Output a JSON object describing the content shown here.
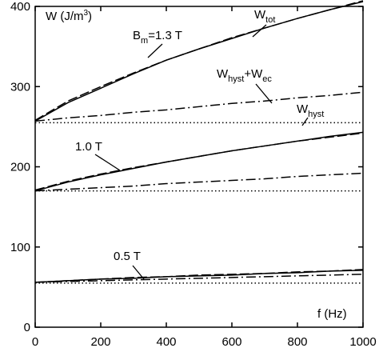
{
  "chart_data": {
    "type": "line",
    "x": [
      0,
      100,
      200,
      300,
      400,
      500,
      600,
      700,
      800,
      900,
      1000
    ],
    "xlim": [
      0,
      1000
    ],
    "xticks": [
      0,
      200,
      400,
      600,
      800,
      1000
    ],
    "ylim": [
      0,
      400
    ],
    "yticks": [
      0,
      100,
      200,
      300,
      400
    ],
    "series": [
      {
        "color": "#000000",
        "style": "solid",
        "values": [
          257,
          280,
          298,
          316,
          333,
          347,
          360,
          373,
          385,
          396,
          406
        ]
      },
      {
        "color": "#000000",
        "style": "dashed",
        "values": [
          258,
          282,
          300,
          317,
          333,
          347,
          361,
          373,
          385,
          396,
          407
        ]
      },
      {
        "color": "#000000",
        "style": "dashdot",
        "values": [
          257,
          261,
          264,
          268,
          271,
          275,
          279,
          282,
          286,
          289,
          293
        ]
      },
      {
        "color": "#000000",
        "style": "dotted",
        "values": [
          255,
          255,
          255,
          255,
          255,
          255,
          255,
          255,
          255,
          255,
          255
        ]
      },
      {
        "color": "#000000",
        "style": "solid",
        "values": [
          170,
          181,
          190,
          198,
          206,
          213,
          220,
          226,
          232,
          238,
          243
        ]
      },
      {
        "color": "#000000",
        "style": "dashed",
        "values": [
          171,
          182,
          191,
          199,
          206,
          213,
          220,
          226,
          232,
          237,
          242
        ]
      },
      {
        "color": "#000000",
        "style": "dashdot",
        "values": [
          170,
          172,
          174,
          176,
          179,
          181,
          183,
          185,
          188,
          190,
          192
        ]
      },
      {
        "color": "#000000",
        "style": "dotted",
        "values": [
          170,
          170,
          170,
          170,
          170,
          170,
          170,
          170,
          170,
          170,
          170
        ]
      },
      {
        "color": "#000000",
        "style": "solid",
        "values": [
          56,
          58,
          60,
          61,
          63,
          64,
          65,
          67,
          68,
          70,
          71
        ]
      },
      {
        "color": "#000000",
        "style": "dashed",
        "values": [
          56,
          58,
          60,
          62,
          63,
          65,
          66,
          67,
          69,
          70,
          72
        ]
      },
      {
        "color": "#000000",
        "style": "dashdot",
        "values": [
          56,
          57,
          58,
          59,
          60,
          61,
          62,
          63,
          64,
          65,
          66
        ]
      },
      {
        "color": "#000000",
        "style": "dotted",
        "values": [
          55,
          55,
          55,
          55,
          55,
          55,
          55,
          55,
          55,
          55,
          55
        ]
      }
    ],
    "annotations": [
      [
        {
          "t": "W (J/m"
        },
        {
          "t": "3",
          "sup": true
        },
        {
          "t": ")"
        }
      ],
      [
        {
          "t": "B"
        },
        {
          "t": "m",
          "sub": true
        },
        {
          "t": "=1.3 T"
        }
      ],
      [
        {
          "t": "W"
        },
        {
          "t": "tot",
          "sub": true
        }
      ],
      [
        {
          "t": "W"
        },
        {
          "t": "hyst",
          "sub": true
        },
        {
          "t": "+W"
        },
        {
          "t": "ec",
          "sub": true
        }
      ],
      [
        {
          "t": "W"
        },
        {
          "t": "hyst",
          "sub": true
        }
      ],
      [
        {
          "t": "1.0 T"
        }
      ],
      [
        {
          "t": "0.5 T"
        }
      ],
      [
        {
          "t": "f (Hz)"
        }
      ]
    ]
  }
}
